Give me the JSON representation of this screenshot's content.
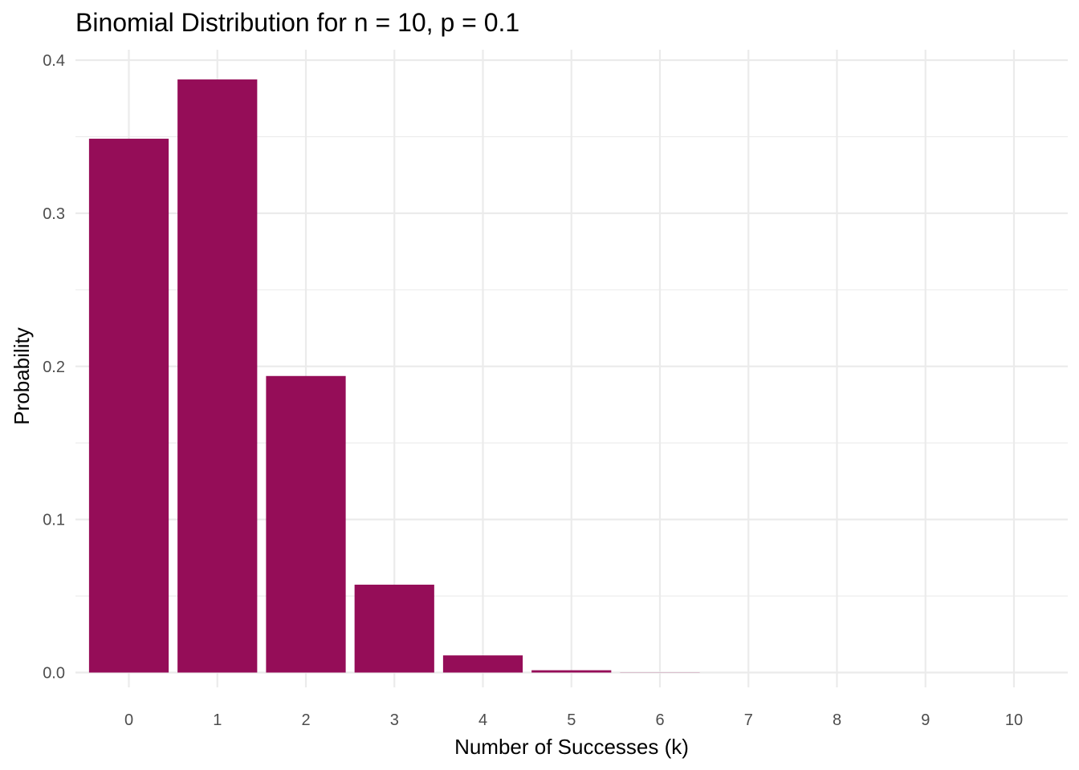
{
  "chart_data": {
    "type": "bar",
    "title": "Binomial Distribution for n = 10, p = 0.1",
    "xlabel": "Number of Successes (k)",
    "ylabel": "Probability",
    "categories": [
      "0",
      "1",
      "2",
      "3",
      "4",
      "5",
      "6",
      "7",
      "8",
      "9",
      "10"
    ],
    "values": [
      0.3487,
      0.3874,
      0.1937,
      0.0574,
      0.0112,
      0.0015,
      0.0001,
      0.0,
      0.0,
      0.0,
      0.0
    ],
    "ylim": [
      0,
      0.4
    ],
    "yticks": [
      "0.0",
      "0.1",
      "0.2",
      "0.3",
      "0.4"
    ],
    "grid": true,
    "bar_color": "#950D58",
    "grid_color": "#EBEBEB"
  }
}
